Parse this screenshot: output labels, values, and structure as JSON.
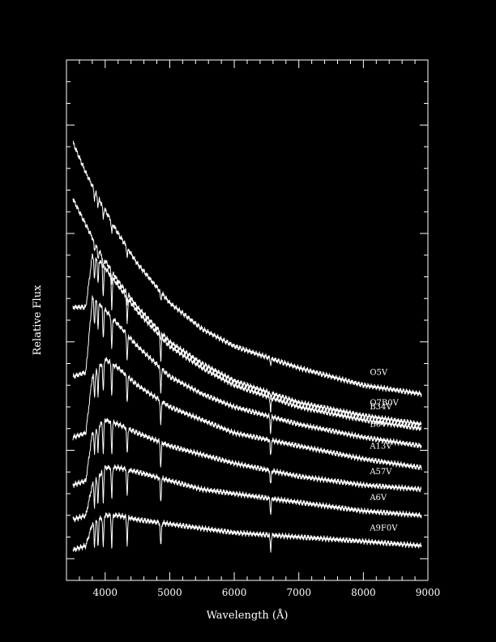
{
  "chart_data": {
    "type": "line",
    "title": "",
    "xlabel": "Wavelength (Å)",
    "ylabel": "Relative Flux",
    "xlim": [
      3400,
      9000
    ],
    "x_ticks": [
      4000,
      5000,
      6000,
      7000,
      8000,
      9000
    ],
    "x_tick_labels": [
      "4000",
      "5000",
      "6000",
      "7000",
      "8000",
      "9000"
    ],
    "y_ticks_labeled": false,
    "grid": false,
    "legend": "labels placed at right end of each curve",
    "colors": {
      "background": "#000000",
      "foreground": "#ffffff"
    },
    "series": [
      {
        "name": "O5V",
        "x": [
          3500,
          3700,
          3900,
          4200,
          4500,
          5000,
          5500,
          6000,
          7000,
          8000,
          8900
        ],
        "y": [
          9.6,
          8.9,
          8.3,
          7.5,
          6.8,
          5.9,
          5.3,
          4.9,
          4.4,
          4.0,
          3.8
        ]
      },
      {
        "name": "O7B0V",
        "x": [
          3500,
          3700,
          3900,
          4200,
          4500,
          5000,
          5500,
          6000,
          7000,
          8000,
          8900
        ],
        "y": [
          8.3,
          7.7,
          7.1,
          6.4,
          5.8,
          5.0,
          4.5,
          4.1,
          3.6,
          3.3,
          3.1
        ]
      },
      {
        "name": "B34V",
        "x": [
          3500,
          3700,
          3800,
          3900,
          4200,
          4500,
          5000,
          5500,
          6000,
          7000,
          8000,
          8900
        ],
        "y": [
          5.8,
          5.8,
          7.0,
          6.9,
          6.3,
          5.7,
          4.9,
          4.4,
          4.0,
          3.5,
          3.2,
          3.0
        ]
      },
      {
        "name": "B6V",
        "x": [
          3500,
          3700,
          3800,
          3900,
          4200,
          4500,
          5000,
          5500,
          6000,
          7000,
          8000,
          8900
        ],
        "y": [
          4.2,
          4.3,
          6.0,
          5.9,
          5.4,
          4.9,
          4.2,
          3.8,
          3.5,
          3.1,
          2.8,
          2.6
        ]
      },
      {
        "name": "A13V",
        "x": [
          3500,
          3700,
          3800,
          4000,
          4200,
          4500,
          5000,
          5500,
          6000,
          7000,
          8000,
          8900
        ],
        "y": [
          2.8,
          2.9,
          4.2,
          4.6,
          4.4,
          4.0,
          3.5,
          3.2,
          2.9,
          2.6,
          2.3,
          2.1
        ]
      },
      {
        "name": "A57V",
        "x": [
          3500,
          3700,
          3800,
          4000,
          4200,
          4500,
          5000,
          5500,
          6000,
          7000,
          8000,
          8900
        ],
        "y": [
          1.7,
          1.8,
          2.9,
          3.2,
          3.1,
          2.9,
          2.6,
          2.4,
          2.2,
          1.9,
          1.7,
          1.6
        ]
      },
      {
        "name": "A6V",
        "x": [
          3500,
          3700,
          3800,
          4000,
          4200,
          4500,
          5000,
          5500,
          6000,
          7000,
          8000,
          8900
        ],
        "y": [
          0.9,
          1.0,
          1.7,
          2.1,
          2.1,
          2.0,
          1.8,
          1.6,
          1.5,
          1.3,
          1.1,
          1.0
        ]
      },
      {
        "name": "A9F0V",
        "x": [
          3500,
          3700,
          3800,
          4000,
          4200,
          4500,
          5000,
          5500,
          6000,
          7000,
          8000,
          8900
        ],
        "y": [
          0.2,
          0.3,
          0.8,
          1.0,
          1.0,
          0.9,
          0.8,
          0.7,
          0.6,
          0.5,
          0.4,
          0.3
        ]
      }
    ]
  }
}
